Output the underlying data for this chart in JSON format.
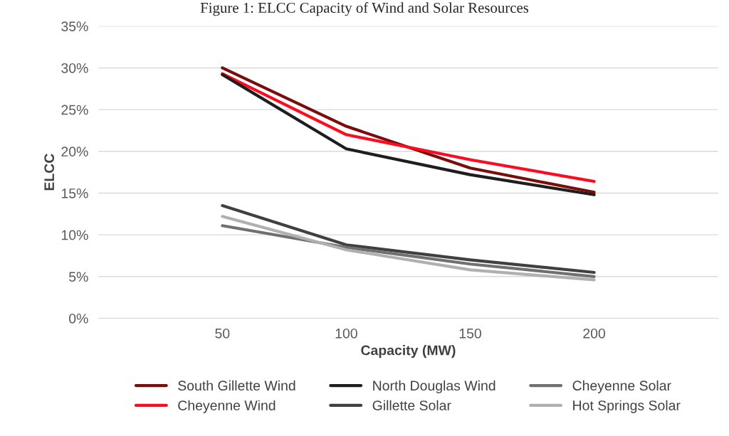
{
  "chart_data": {
    "type": "line",
    "title": "Figure 1: ELCC Capacity of Wind and Solar Resources",
    "xlabel": "Capacity (MW)",
    "ylabel": "ELCC",
    "categories": [
      "50",
      "100",
      "150",
      "200"
    ],
    "series": [
      {
        "name": "South Gillette Wind",
        "color": "#7b0c0c",
        "values": [
          30.0,
          23.0,
          18.0,
          15.1
        ]
      },
      {
        "name": "Cheyenne Wind",
        "color": "#ff0a1e",
        "values": [
          29.3,
          22.0,
          19.0,
          16.4
        ]
      },
      {
        "name": "North Douglas Wind",
        "color": "#1e1e1e",
        "values": [
          29.2,
          20.3,
          17.2,
          14.8
        ]
      },
      {
        "name": "Gillette Solar",
        "color": "#404040",
        "values": [
          13.5,
          8.8,
          7.0,
          5.5
        ]
      },
      {
        "name": "Cheyenne Solar",
        "color": "#707070",
        "values": [
          11.1,
          8.5,
          6.5,
          5.0
        ]
      },
      {
        "name": "Hot Springs Solar",
        "color": "#b0b0b0",
        "values": [
          12.2,
          8.2,
          5.8,
          4.6
        ]
      }
    ],
    "ylim": [
      0,
      35
    ],
    "yticks": [
      {
        "value": 0,
        "label": "0%"
      },
      {
        "value": 5,
        "label": "5%"
      },
      {
        "value": 10,
        "label": "10%"
      },
      {
        "value": 15,
        "label": "15%"
      },
      {
        "value": 20,
        "label": "20%"
      },
      {
        "value": 25,
        "label": "25%"
      },
      {
        "value": 30,
        "label": "30%"
      },
      {
        "value": 35,
        "label": "35%"
      }
    ],
    "grid": "y",
    "legend": "bottom",
    "line_style": "solid",
    "marker": "none"
  }
}
